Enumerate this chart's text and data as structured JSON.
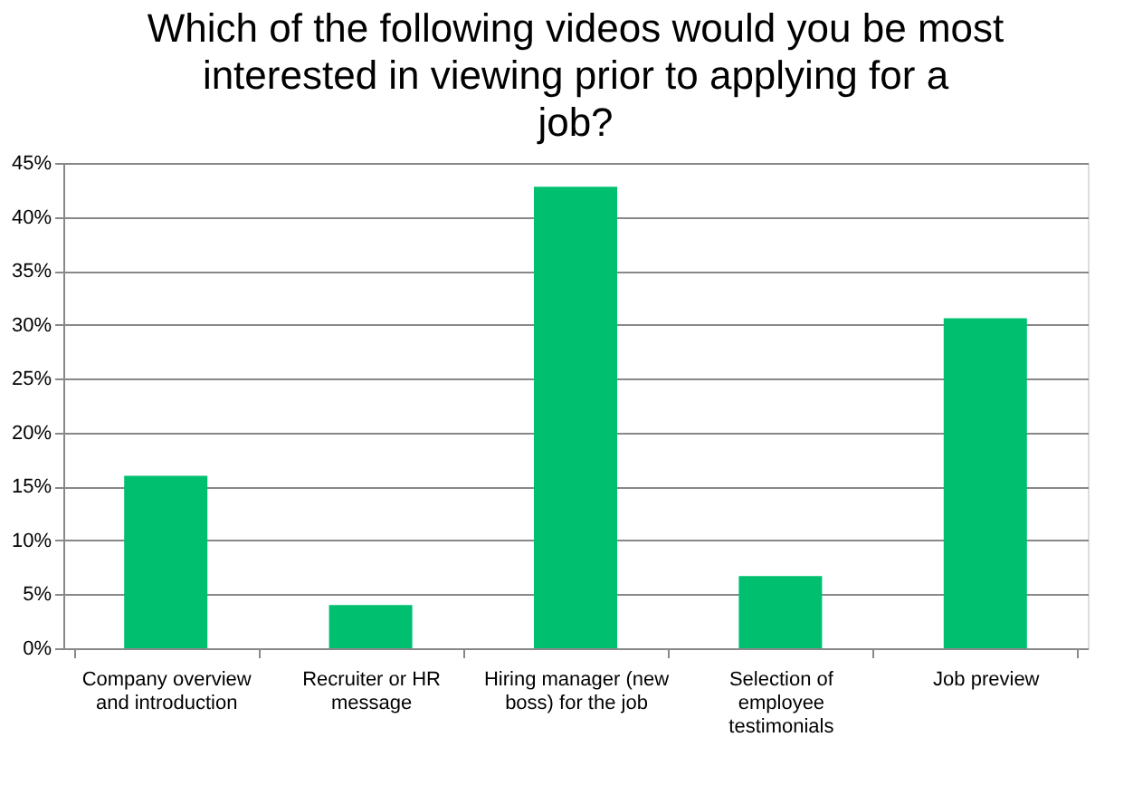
{
  "chart_data": {
    "type": "bar",
    "title": "Which of the following videos would you be most interested in viewing prior to applying for a job?",
    "categories": [
      "Company overview and introduction",
      "Recruiter or HR message",
      "Hiring manager (new boss) for the job",
      "Selection of employee testimonials",
      "Job preview"
    ],
    "values": [
      16.0,
      4.0,
      42.8,
      6.7,
      30.6
    ],
    "color": "#00bf6f",
    "ylim": [
      0,
      45
    ],
    "yticks": [
      {
        "value": 0,
        "label": "0%"
      },
      {
        "value": 5,
        "label": "5%"
      },
      {
        "value": 10,
        "label": "10%"
      },
      {
        "value": 15,
        "label": "15%"
      },
      {
        "value": 20,
        "label": "20%"
      },
      {
        "value": 25,
        "label": "25%"
      },
      {
        "value": 30,
        "label": "30%"
      },
      {
        "value": 35,
        "label": "35%"
      },
      {
        "value": 40,
        "label": "40%"
      },
      {
        "value": 45,
        "label": "45%"
      }
    ],
    "grid": "y"
  }
}
